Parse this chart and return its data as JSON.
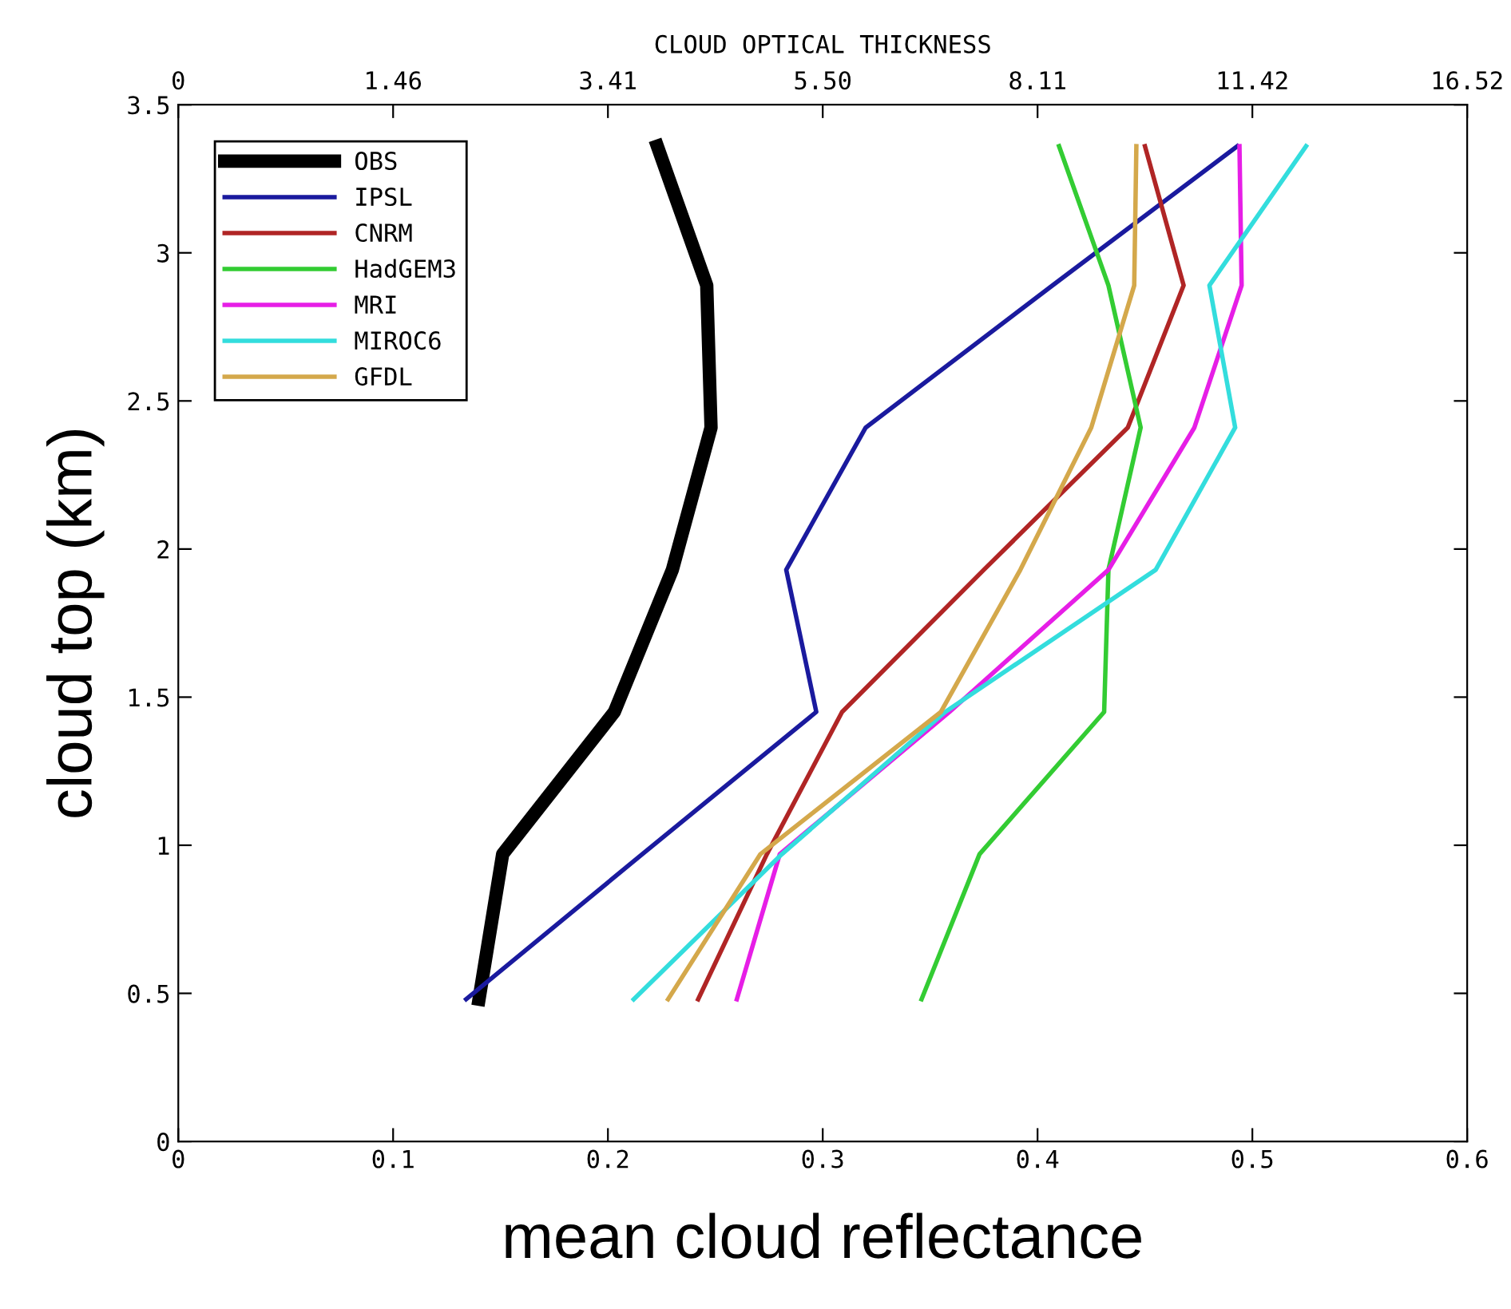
{
  "chart_data": {
    "type": "line",
    "xlabel": "mean cloud reflectance",
    "ylabel": "cloud top (km)",
    "x2label": "CLOUD OPTICAL THICKNESS",
    "xlim": [
      0,
      0.6
    ],
    "xticks": [
      0,
      0.1,
      0.2,
      0.3,
      0.4,
      0.5,
      0.6
    ],
    "annotations": [
      "0",
      "1.46",
      "3.41",
      "5.50",
      "8.11",
      "11.42",
      "16.52"
    ],
    "ylim": [
      0,
      3.5
    ],
    "yticks": [
      0,
      0.5,
      1,
      1.5,
      2,
      2.5,
      3,
      3.5
    ],
    "grid": false,
    "legend": "top left",
    "marker": "none",
    "line_style": "solid",
    "series": [
      {
        "name": "OBS",
        "color": "#000000",
        "x": [
          0.14,
          0.151,
          0.203,
          0.23,
          0.248,
          0.246,
          0.223
        ],
        "values": [
          0.48,
          0.97,
          1.45,
          1.93,
          2.41,
          2.89,
          3.36
        ]
      },
      {
        "name": "IPSL",
        "color": "#1a1a9e",
        "x": [
          0.134,
          0.216,
          0.297,
          0.283,
          0.32,
          0.407,
          0.493
        ],
        "values": [
          0.48,
          0.97,
          1.45,
          1.93,
          2.41,
          2.89,
          3.36
        ]
      },
      {
        "name": "CNRM",
        "color": "#b02525",
        "x": [
          0.242,
          0.274,
          0.309,
          0.375,
          0.442,
          0.468,
          0.45
        ],
        "values": [
          0.48,
          0.97,
          1.45,
          1.93,
          2.41,
          2.89,
          3.36
        ]
      },
      {
        "name": "HadGEM3",
        "color": "#33cc33",
        "x": [
          0.346,
          0.373,
          0.431,
          0.433,
          0.448,
          0.433,
          0.41
        ],
        "values": [
          0.48,
          0.97,
          1.45,
          1.93,
          2.41,
          2.89,
          3.36
        ]
      },
      {
        "name": "MRI",
        "color": "#e61ee6",
        "x": [
          0.26,
          0.28,
          0.359,
          0.433,
          0.473,
          0.495,
          0.494
        ],
        "values": [
          0.48,
          0.97,
          1.45,
          1.93,
          2.41,
          2.89,
          3.36
        ]
      },
      {
        "name": "MIROC6",
        "color": "#33dddd",
        "x": [
          0.212,
          0.281,
          0.357,
          0.455,
          0.492,
          0.48,
          0.525
        ],
        "values": [
          0.48,
          0.97,
          1.45,
          1.93,
          2.41,
          2.89,
          3.36
        ]
      },
      {
        "name": "GFDL",
        "color": "#d4a84b",
        "x": [
          0.228,
          0.271,
          0.355,
          0.392,
          0.425,
          0.445,
          0.446
        ],
        "values": [
          0.48,
          0.97,
          1.45,
          1.93,
          2.41,
          2.89,
          3.36
        ]
      }
    ]
  }
}
